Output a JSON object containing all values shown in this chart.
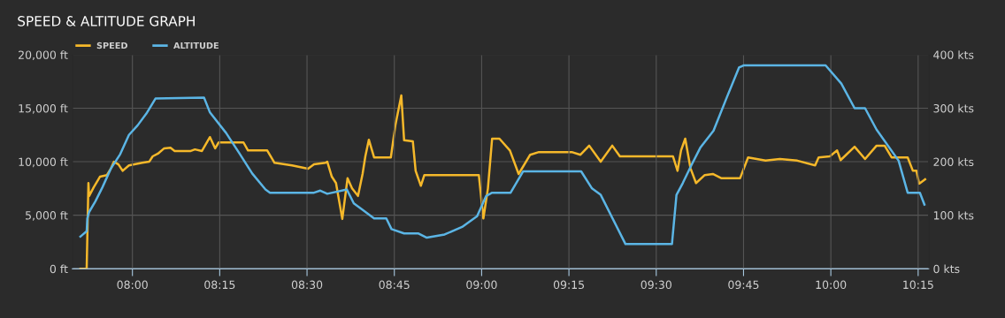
{
  "chart_data": {
    "type": "line",
    "title": "SPEED & ALTITUDE GRAPH",
    "legend": "top left",
    "grid": true,
    "marker": "none",
    "line_style": "solid",
    "xlim": [
      7.828,
      10.28
    ],
    "xticks": [
      {
        "value": 8,
        "label": "08:00"
      },
      {
        "value": 8.25,
        "label": "08:15"
      },
      {
        "value": 8.5,
        "label": "08:30"
      },
      {
        "value": 8.75,
        "label": "08:45"
      },
      {
        "value": 9,
        "label": "09:00"
      },
      {
        "value": 9.25,
        "label": "09:15"
      },
      {
        "value": 9.5,
        "label": "09:30"
      },
      {
        "value": 9.75,
        "label": "09:45"
      },
      {
        "value": 10,
        "label": "10:00"
      },
      {
        "value": 10.25,
        "label": "10:15"
      }
    ],
    "ylim": [
      0,
      20000
    ],
    "yticks": [
      {
        "value": 0,
        "label": "0 ft"
      },
      {
        "value": 5000,
        "label": "5,000 ft"
      },
      {
        "value": 10000,
        "label": "10,000 ft"
      },
      {
        "value": 15000,
        "label": "15,000 ft"
      },
      {
        "value": 20000,
        "label": "20,000 ft"
      }
    ],
    "y2lim": [
      0,
      400
    ],
    "y2ticks": [
      {
        "value": 0,
        "label": "0 kts"
      },
      {
        "value": 100,
        "label": "100 kts"
      },
      {
        "value": 200,
        "label": "200 kts"
      },
      {
        "value": 300,
        "label": "300 kts"
      },
      {
        "value": 400,
        "label": "400 kts"
      }
    ],
    "series": [
      {
        "name": "SPEED",
        "color": "#f5b82a",
        "axis": "y2",
        "x": [
          7.851,
          7.869,
          7.874,
          7.876,
          7.889,
          7.907,
          7.927,
          7.939,
          7.947,
          7.96,
          7.972,
          7.99,
          8.028,
          8.048,
          8.058,
          8.073,
          8.091,
          8.109,
          8.121,
          8.167,
          8.179,
          8.199,
          8.222,
          8.237,
          8.247,
          8.318,
          8.331,
          8.386,
          8.407,
          8.457,
          8.503,
          8.52,
          8.553,
          8.558,
          8.571,
          8.583,
          8.601,
          8.616,
          8.629,
          8.646,
          8.659,
          8.667,
          8.677,
          8.692,
          8.74,
          8.753,
          8.77,
          8.778,
          8.803,
          8.811,
          8.826,
          8.836,
          8.992,
          9.005,
          9.018,
          9.03,
          9.051,
          9.081,
          9.106,
          9.139,
          9.164,
          9.258,
          9.283,
          9.308,
          9.341,
          9.374,
          9.396,
          9.548,
          9.561,
          9.571,
          9.583,
          9.598,
          9.614,
          9.639,
          9.662,
          9.687,
          9.74,
          9.763,
          9.813,
          9.854,
          9.904,
          9.955,
          9.965,
          9.997,
          10.018,
          10.028,
          10.068,
          10.098,
          10.131,
          10.154,
          10.174,
          10.22,
          10.235,
          10.245,
          10.253,
          10.27
        ],
        "values": [
          0,
          0,
          160,
          136,
          152,
          172,
          175,
          188,
          200,
          195,
          183,
          193,
          198,
          200,
          210,
          215,
          225,
          226,
          220,
          220,
          223,
          220,
          246,
          225,
          236,
          236,
          221,
          221,
          198,
          193,
          187,
          195,
          198,
          200,
          172,
          160,
          93,
          169,
          150,
          136,
          177,
          210,
          241,
          208,
          208,
          268,
          324,
          240,
          238,
          183,
          155,
          175,
          175,
          94,
          150,
          243,
          243,
          221,
          177,
          213,
          218,
          218,
          213,
          230,
          200,
          230,
          210,
          210,
          183,
          221,
          243,
          188,
          160,
          175,
          177,
          169,
          169,
          208,
          202,
          205,
          202,
          193,
          208,
          210,
          221,
          203,
          228,
          205,
          230,
          230,
          208,
          208,
          183,
          183,
          159,
          167
        ]
      },
      {
        "name": "ALTITUDE",
        "color": "#5bb5e5",
        "x": [
          7.851,
          7.869,
          7.871,
          7.876,
          7.894,
          7.914,
          7.939,
          7.965,
          7.99,
          8.015,
          8.04,
          8.066,
          8.205,
          8.222,
          8.268,
          8.306,
          8.343,
          8.381,
          8.394,
          8.52,
          8.538,
          8.558,
          8.614,
          8.634,
          8.659,
          8.692,
          8.727,
          8.742,
          8.778,
          8.818,
          8.843,
          8.894,
          8.944,
          8.987,
          9.013,
          9.03,
          9.083,
          9.119,
          9.285,
          9.316,
          9.341,
          9.412,
          9.545,
          9.558,
          9.576,
          9.601,
          9.626,
          9.664,
          9.702,
          9.737,
          9.75,
          9.985,
          10.03,
          10.068,
          10.098,
          10.131,
          10.194,
          10.22,
          10.255,
          10.268
        ],
        "values": [
          3000,
          3500,
          4700,
          5300,
          6300,
          7600,
          9400,
          10700,
          12500,
          13400,
          14500,
          15900,
          16000,
          14600,
          12700,
          10800,
          8900,
          7400,
          7100,
          7100,
          7300,
          7000,
          7400,
          6100,
          5500,
          4700,
          4700,
          3700,
          3300,
          3300,
          2900,
          3200,
          3900,
          4900,
          6800,
          7100,
          7100,
          9100,
          9100,
          7500,
          6900,
          2300,
          2300,
          6900,
          8000,
          9700,
          11300,
          12900,
          16000,
          18800,
          19000,
          19000,
          17300,
          15000,
          15000,
          13000,
          10100,
          7100,
          7100,
          6000
        ]
      }
    ]
  }
}
